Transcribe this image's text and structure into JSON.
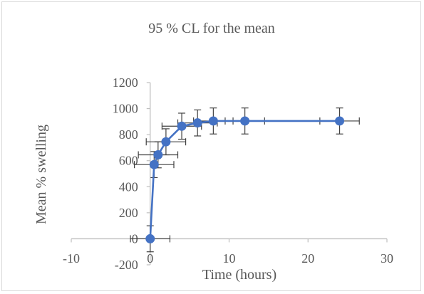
{
  "chart_data": {
    "type": "scatter",
    "title": "95 % CL for the mean",
    "xlabel": "Time (hours)",
    "ylabel": "Mean % swelling",
    "xlim": [
      -10,
      30
    ],
    "ylim": [
      -200,
      1200
    ],
    "x_ticks": [
      -10,
      0,
      10,
      20,
      30
    ],
    "y_ticks": [
      -200,
      0,
      200,
      400,
      600,
      800,
      1000,
      1200
    ],
    "grid": false,
    "legend": "none",
    "colors": {
      "series": "#4472C4",
      "axis": "#bfbfbf",
      "error_bar": "#404040",
      "text": "#595959"
    },
    "series": [
      {
        "x": [
          0,
          0.5,
          1,
          2,
          4,
          6,
          8,
          12,
          24
        ],
        "y": [
          0,
          570,
          645,
          745,
          865,
          890,
          905,
          905,
          905
        ],
        "x_err": [
          2.5,
          2.5,
          2.5,
          2.5,
          2.5,
          2.5,
          2.5,
          2.5,
          2.5
        ],
        "y_err": [
          100,
          100,
          100,
          100,
          100,
          100,
          100,
          100,
          100
        ]
      }
    ]
  }
}
